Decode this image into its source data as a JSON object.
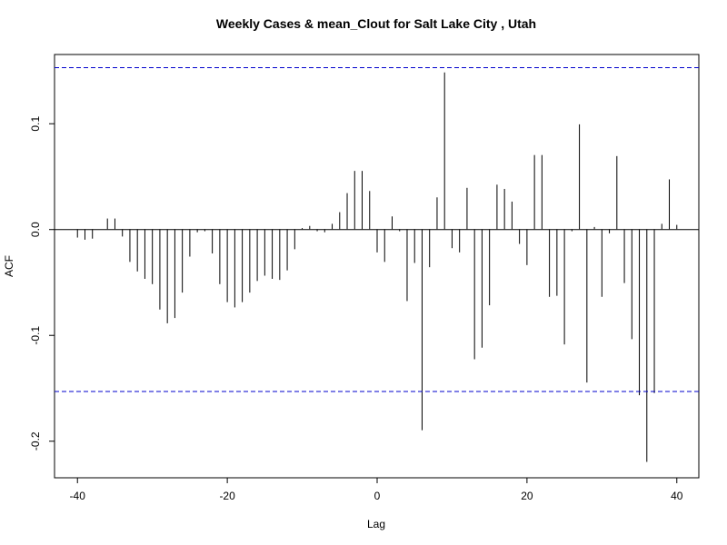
{
  "chart_data": {
    "type": "bar",
    "title": "Weekly Cases & mean_Clout for Salt Lake City , Utah",
    "xlabel": "Lag",
    "ylabel": "ACF",
    "xlim": [
      -43,
      43
    ],
    "ylim": [
      -0.235,
      0.165
    ],
    "x_ticks": [
      -40,
      -20,
      0,
      20,
      40
    ],
    "x_tick_labels": [
      "-40",
      "-20",
      "0",
      "20",
      "40"
    ],
    "y_ticks": [
      0.1,
      0.0,
      -0.1,
      -0.2
    ],
    "y_tick_labels": [
      "0.1",
      "0.0",
      "-0.1",
      "-0.2"
    ],
    "confidence_bound": 0.153,
    "zero_line": true,
    "grid": false,
    "colors": {
      "bars": "#000000",
      "confidence": "#0000cc",
      "frame": "#000000"
    },
    "lags": [
      -40,
      -39,
      -38,
      -37,
      -36,
      -35,
      -34,
      -33,
      -32,
      -31,
      -30,
      -29,
      -28,
      -27,
      -26,
      -25,
      -24,
      -23,
      -22,
      -21,
      -20,
      -19,
      -18,
      -17,
      -16,
      -15,
      -14,
      -13,
      -12,
      -11,
      -10,
      -9,
      -8,
      -7,
      -6,
      -5,
      -4,
      -3,
      -2,
      -1,
      0,
      1,
      2,
      3,
      4,
      5,
      6,
      7,
      8,
      9,
      10,
      11,
      12,
      13,
      14,
      15,
      16,
      17,
      18,
      19,
      20,
      21,
      22,
      23,
      24,
      25,
      26,
      27,
      28,
      29,
      30,
      31,
      32,
      33,
      34,
      35,
      36,
      37,
      38,
      39,
      40
    ],
    "values": [
      -0.008,
      -0.01,
      -0.009,
      0.0,
      0.01,
      0.01,
      -0.007,
      -0.031,
      -0.04,
      -0.047,
      -0.052,
      -0.076,
      -0.089,
      -0.084,
      -0.06,
      -0.026,
      -0.003,
      -0.002,
      -0.023,
      -0.052,
      -0.069,
      -0.074,
      -0.069,
      -0.06,
      -0.049,
      -0.044,
      -0.047,
      -0.048,
      -0.039,
      -0.019,
      0.001,
      0.003,
      -0.002,
      -0.003,
      0.005,
      0.016,
      0.034,
      0.055,
      0.055,
      0.036,
      -0.022,
      -0.031,
      0.012,
      -0.002,
      -0.068,
      -0.032,
      -0.19,
      -0.036,
      0.03,
      0.148,
      -0.018,
      -0.022,
      0.039,
      -0.123,
      -0.112,
      -0.072,
      0.042,
      0.038,
      0.026,
      -0.014,
      -0.034,
      0.07,
      0.07,
      -0.064,
      -0.063,
      -0.109,
      -0.002,
      0.099,
      -0.145,
      0.002,
      -0.064,
      -0.004,
      0.069,
      -0.051,
      -0.104,
      -0.157,
      -0.22,
      -0.155,
      0.005,
      0.047,
      0.004
    ]
  }
}
